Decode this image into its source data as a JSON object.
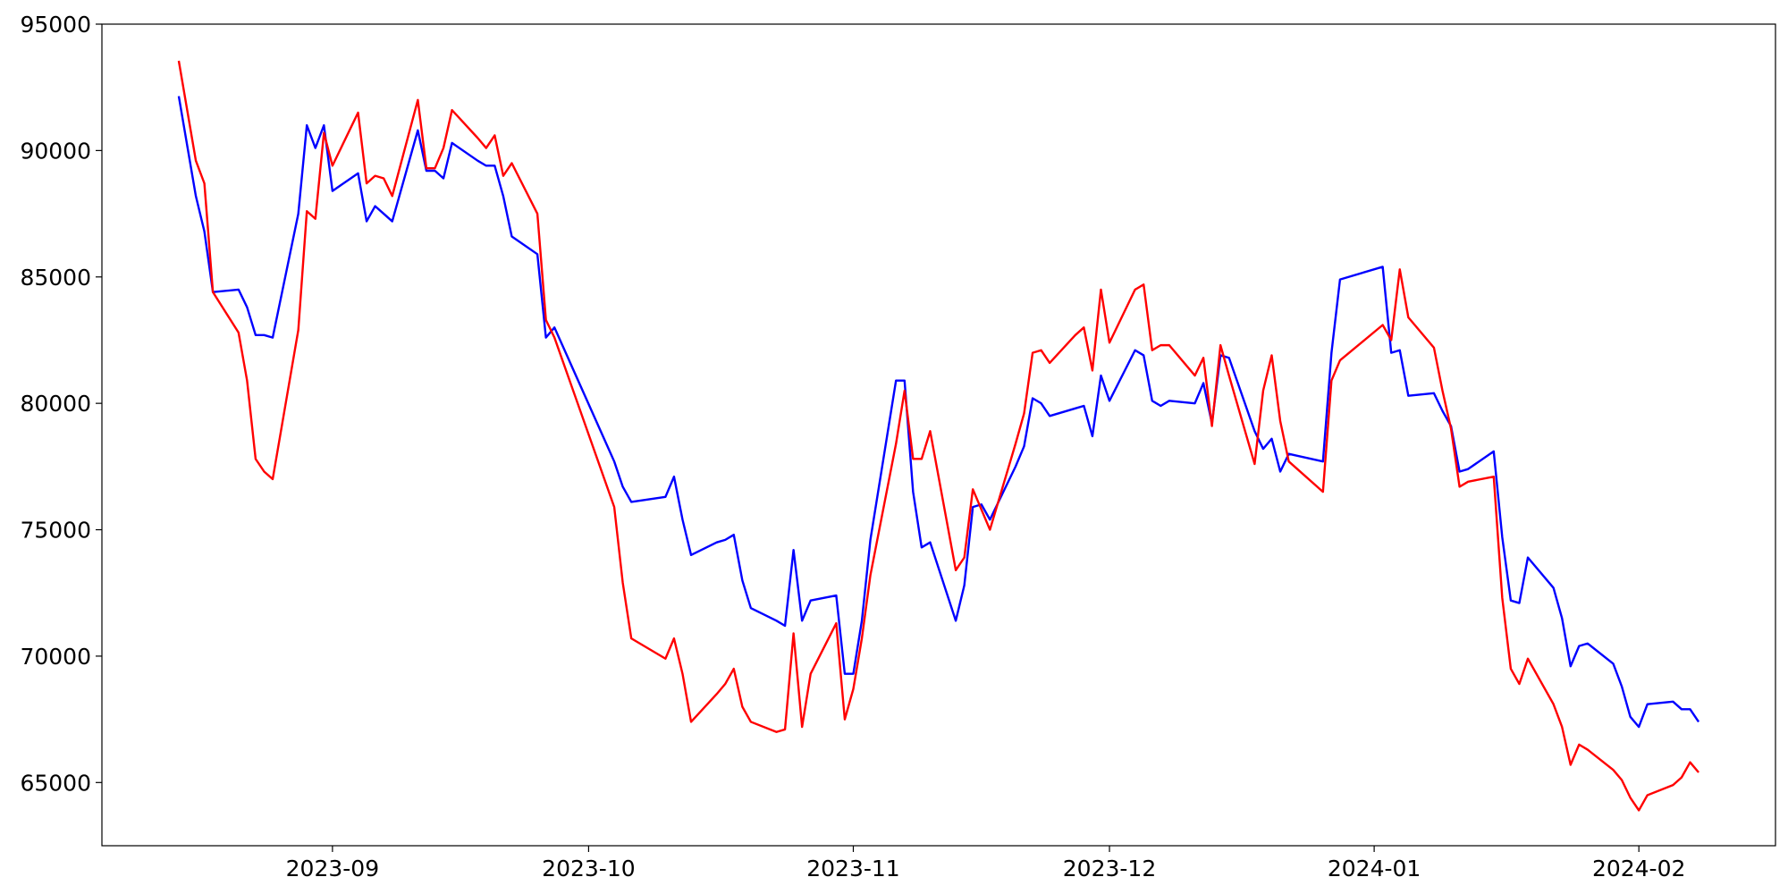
{
  "chart_data": {
    "type": "line",
    "x": [
      "2023-08-14",
      "2023-08-16",
      "2023-08-17",
      "2023-08-18",
      "2023-08-21",
      "2023-08-22",
      "2023-08-23",
      "2023-08-24",
      "2023-08-25",
      "2023-08-28",
      "2023-08-29",
      "2023-08-30",
      "2023-08-31",
      "2023-09-01",
      "2023-09-04",
      "2023-09-05",
      "2023-09-06",
      "2023-09-07",
      "2023-09-08",
      "2023-09-11",
      "2023-09-12",
      "2023-09-13",
      "2023-09-14",
      "2023-09-15",
      "2023-09-18",
      "2023-09-19",
      "2023-09-20",
      "2023-09-21",
      "2023-09-22",
      "2023-09-25",
      "2023-09-26",
      "2023-09-27",
      "2023-10-04",
      "2023-10-05",
      "2023-10-06",
      "2023-10-10",
      "2023-10-11",
      "2023-10-12",
      "2023-10-13",
      "2023-10-16",
      "2023-10-17",
      "2023-10-18",
      "2023-10-19",
      "2023-10-20",
      "2023-10-23",
      "2023-10-24",
      "2023-10-25",
      "2023-10-26",
      "2023-10-27",
      "2023-10-30",
      "2023-10-31",
      "2023-11-01",
      "2023-11-02",
      "2023-11-03",
      "2023-11-06",
      "2023-11-07",
      "2023-11-08",
      "2023-11-09",
      "2023-11-10",
      "2023-11-13",
      "2023-11-14",
      "2023-11-15",
      "2023-11-16",
      "2023-11-17",
      "2023-11-20",
      "2023-11-21",
      "2023-11-22",
      "2023-11-23",
      "2023-11-24",
      "2023-11-27",
      "2023-11-28",
      "2023-11-29",
      "2023-11-30",
      "2023-12-01",
      "2023-12-04",
      "2023-12-05",
      "2023-12-06",
      "2023-12-07",
      "2023-12-08",
      "2023-12-11",
      "2023-12-12",
      "2023-12-13",
      "2023-12-14",
      "2023-12-15",
      "2023-12-18",
      "2023-12-19",
      "2023-12-20",
      "2023-12-21",
      "2023-12-22",
      "2023-12-26",
      "2023-12-27",
      "2023-12-28",
      "2024-01-02",
      "2024-01-03",
      "2024-01-04",
      "2024-01-05",
      "2024-01-08",
      "2024-01-09",
      "2024-01-10",
      "2024-01-11",
      "2024-01-12",
      "2024-01-15",
      "2024-01-16",
      "2024-01-17",
      "2024-01-18",
      "2024-01-19",
      "2024-01-22",
      "2024-01-23",
      "2024-01-24",
      "2024-01-25",
      "2024-01-26",
      "2024-01-29",
      "2024-01-30",
      "2024-01-31",
      "2024-02-01",
      "2024-02-02",
      "2024-02-05",
      "2024-02-06",
      "2024-02-07",
      "2024-02-08"
    ],
    "series": [
      {
        "color": "#0000ff",
        "values": [
          92150,
          88200,
          86800,
          84400,
          84500,
          83800,
          82700,
          82700,
          82600,
          87500,
          91000,
          90100,
          91000,
          88400,
          89100,
          87200,
          87800,
          87500,
          87200,
          90800,
          89200,
          89200,
          88900,
          90300,
          89600,
          89400,
          89400,
          88200,
          86600,
          85900,
          82600,
          83000,
          77700,
          76700,
          76100,
          76300,
          77100,
          75400,
          74000,
          74500,
          74600,
          74800,
          73000,
          71900,
          71400,
          71200,
          74200,
          71400,
          72200,
          72400,
          69300,
          69300,
          71400,
          74600,
          80900,
          80900,
          76500,
          74300,
          74500,
          71400,
          72800,
          75900,
          76000,
          75400,
          77500,
          78300,
          80200,
          80000,
          79500,
          79800,
          79900,
          78700,
          81100,
          80100,
          82100,
          81900,
          80100,
          79900,
          80100,
          80000,
          80800,
          79200,
          81900,
          81800,
          78900,
          78200,
          78600,
          77300,
          78000,
          77700,
          82000,
          84900,
          85400,
          82000,
          82100,
          80300,
          80400,
          79700,
          79100,
          77300,
          77400,
          78100,
          74700,
          72200,
          72100,
          73900,
          72700,
          71500,
          69600,
          70400,
          70500,
          69700,
          68800,
          67600,
          67200,
          68100,
          68200,
          67900,
          67900,
          67400
        ]
      },
      {
        "color": "#ff0000",
        "values": [
          93550,
          89600,
          88700,
          84400,
          82800,
          80900,
          77800,
          77300,
          77000,
          82900,
          87600,
          87300,
          90700,
          89400,
          91500,
          88700,
          89000,
          88900,
          88200,
          92000,
          89300,
          89300,
          90100,
          91600,
          90500,
          90100,
          90600,
          89000,
          89500,
          87500,
          83300,
          82600,
          75900,
          72900,
          70700,
          69900,
          70700,
          69300,
          67400,
          68500,
          68900,
          69500,
          68000,
          67400,
          67000,
          67100,
          70900,
          67200,
          69300,
          71300,
          67500,
          68700,
          70700,
          73200,
          78400,
          80500,
          77800,
          77800,
          78900,
          73400,
          73900,
          76600,
          75800,
          75000,
          78400,
          79600,
          82000,
          82100,
          81600,
          82700,
          83000,
          81300,
          84500,
          82400,
          84500,
          84700,
          82100,
          82300,
          82300,
          81100,
          81800,
          79100,
          82300,
          81100,
          77600,
          80500,
          81900,
          79300,
          77700,
          76500,
          80900,
          81700,
          83100,
          82500,
          85300,
          83400,
          82200,
          80500,
          79000,
          76700,
          76900,
          77100,
          72300,
          69500,
          68900,
          69900,
          68100,
          67200,
          65700,
          66500,
          66300,
          65500,
          65100,
          64400,
          63900,
          64500,
          64900,
          65200,
          65800,
          65400
        ]
      }
    ],
    "xlim": [
      "2023-08-05",
      "2024-02-17"
    ],
    "xticks": [
      {
        "value": "2023-09-01",
        "label": "2023-09"
      },
      {
        "value": "2023-10-01",
        "label": "2023-10"
      },
      {
        "value": "2023-11-01",
        "label": "2023-11"
      },
      {
        "value": "2023-12-01",
        "label": "2023-12"
      },
      {
        "value": "2024-01-01",
        "label": "2024-01"
      },
      {
        "value": "2024-02-01",
        "label": "2024-02"
      }
    ],
    "ylim": [
      62500,
      95000
    ],
    "yticks": [
      65000,
      70000,
      75000,
      80000,
      85000,
      90000,
      95000
    ],
    "grid": false
  }
}
